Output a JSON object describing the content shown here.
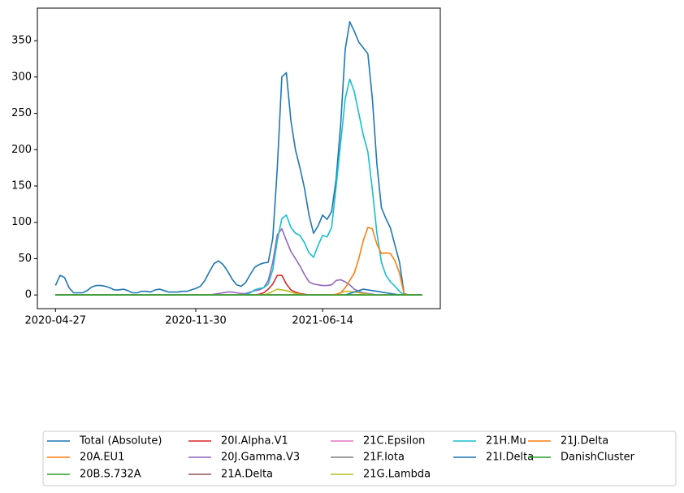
{
  "chart_data": {
    "type": "line",
    "x": [
      "2020-04-27",
      "2020-05-04",
      "2020-05-11",
      "2020-05-18",
      "2020-05-25",
      "2020-06-01",
      "2020-06-08",
      "2020-06-15",
      "2020-06-22",
      "2020-06-29",
      "2020-07-06",
      "2020-07-13",
      "2020-07-20",
      "2020-07-27",
      "2020-08-03",
      "2020-08-10",
      "2020-08-17",
      "2020-08-24",
      "2020-08-31",
      "2020-09-07",
      "2020-09-14",
      "2020-09-21",
      "2020-09-28",
      "2020-10-05",
      "2020-10-12",
      "2020-10-19",
      "2020-10-26",
      "2020-11-02",
      "2020-11-09",
      "2020-11-16",
      "2020-11-23",
      "2020-11-30",
      "2020-12-07",
      "2020-12-14",
      "2020-12-21",
      "2020-12-28",
      "2021-01-04",
      "2021-01-11",
      "2021-01-18",
      "2021-01-25",
      "2021-02-01",
      "2021-02-08",
      "2021-02-15",
      "2021-02-22",
      "2021-03-01",
      "2021-03-08",
      "2021-03-15",
      "2021-03-22",
      "2021-03-29",
      "2021-04-05",
      "2021-04-12",
      "2021-04-19",
      "2021-04-26",
      "2021-05-03",
      "2021-05-10",
      "2021-05-17",
      "2021-05-24",
      "2021-05-31",
      "2021-06-07",
      "2021-06-14",
      "2021-06-21",
      "2021-06-28",
      "2021-07-05",
      "2021-07-12",
      "2021-07-19",
      "2021-07-26",
      "2021-08-02",
      "2021-08-09",
      "2021-08-16",
      "2021-08-23",
      "2021-08-30",
      "2021-09-06",
      "2021-09-13",
      "2021-09-20",
      "2021-09-27",
      "2021-10-04",
      "2021-10-11",
      "2021-10-18",
      "2021-10-25",
      "2021-11-01",
      "2021-11-08",
      "2021-11-15"
    ],
    "xlim": [
      "2020-03-30",
      "2021-12-13"
    ],
    "xticks": [
      "2020-04-27",
      "2020-11-30",
      "2021-06-14"
    ],
    "ylim": [
      -18.8,
      394.8
    ],
    "yticks": [
      0,
      50,
      100,
      150,
      200,
      250,
      300,
      350
    ],
    "legend": "bottom",
    "series": [
      {
        "name": "Total (Absolute)",
        "color": "#1f77b4",
        "values": [
          13,
          27,
          24,
          10,
          3,
          3,
          3,
          6,
          11,
          13,
          13,
          12,
          10,
          7,
          7,
          8,
          6,
          3,
          3,
          5,
          5,
          4,
          7,
          8,
          6,
          4,
          4,
          4,
          5,
          5,
          7,
          9,
          12,
          20,
          32,
          43,
          47,
          42,
          33,
          22,
          14,
          12,
          17,
          28,
          38,
          42,
          44,
          45,
          78,
          175,
          300,
          306,
          240,
          200,
          175,
          147,
          110,
          85,
          95,
          110,
          104,
          115,
          160,
          235,
          338,
          376,
          363,
          348,
          340,
          332,
          270,
          180,
          120,
          105,
          92,
          68,
          45,
          2,
          0,
          0,
          0,
          0
        ]
      },
      {
        "name": "20A.EU1",
        "color": "#ff7f0e",
        "values": [
          0,
          0,
          0,
          0,
          0,
          0,
          0,
          0,
          0,
          0,
          0,
          0,
          0,
          0,
          0,
          0,
          0,
          0,
          0,
          0,
          0,
          0,
          0,
          0,
          0,
          0,
          0,
          0,
          0,
          0,
          0,
          0,
          0,
          0,
          0,
          0,
          0,
          0,
          0,
          0,
          0,
          0,
          0,
          0,
          0,
          0,
          0,
          0,
          0,
          0,
          0,
          0,
          0,
          0,
          0,
          0,
          0,
          0,
          0,
          0,
          0,
          0,
          0,
          0,
          0,
          0,
          0,
          0,
          0,
          0,
          0,
          0,
          0,
          0,
          0,
          0,
          0,
          0,
          0,
          0,
          0,
          0
        ]
      },
      {
        "name": "20B.S.732A",
        "color": "#2ca02c",
        "values": [
          0,
          0,
          0,
          0,
          0,
          0,
          0,
          0,
          0,
          0,
          0,
          0,
          0,
          0,
          0,
          0,
          0,
          0,
          0,
          0,
          0,
          0,
          0,
          0,
          0,
          0,
          0,
          0,
          0,
          0,
          0,
          0,
          0,
          0,
          0,
          0,
          0,
          0,
          0,
          0,
          0,
          0,
          0,
          0,
          0,
          0,
          0,
          0,
          0,
          0,
          0,
          0,
          0,
          0,
          0,
          0,
          0,
          0,
          0,
          0,
          0,
          0,
          0,
          0,
          0,
          0,
          0,
          0,
          0,
          0,
          0,
          0,
          0,
          0,
          0,
          0,
          0,
          0,
          0,
          0,
          0,
          0
        ]
      },
      {
        "name": "20I.Alpha.V1",
        "color": "#d62728",
        "values": [
          0,
          0,
          0,
          0,
          0,
          0,
          0,
          0,
          0,
          0,
          0,
          0,
          0,
          0,
          0,
          0,
          0,
          0,
          0,
          0,
          0,
          0,
          0,
          0,
          0,
          0,
          0,
          0,
          0,
          0,
          0,
          0,
          0,
          0,
          0,
          0,
          0,
          0,
          0,
          0,
          0,
          0,
          0,
          0,
          0,
          1,
          3,
          8,
          15,
          27,
          27,
          15,
          7,
          4,
          2,
          1,
          0,
          0,
          0,
          0,
          0,
          0,
          0,
          0,
          0,
          0,
          0,
          0,
          0,
          0,
          0,
          0,
          0,
          0,
          0,
          0,
          0,
          0,
          0,
          0,
          0,
          0
        ]
      },
      {
        "name": "20J.Gamma.V3",
        "color": "#9467bd",
        "values": [
          0,
          0,
          0,
          0,
          0,
          0,
          0,
          0,
          0,
          0,
          0,
          0,
          0,
          0,
          0,
          0,
          0,
          0,
          0,
          0,
          0,
          0,
          0,
          0,
          0,
          0,
          0,
          0,
          0,
          0,
          0,
          0,
          0,
          0,
          0,
          1,
          2,
          3,
          4,
          4,
          3,
          2,
          2,
          4,
          6,
          7,
          10,
          20,
          45,
          83,
          91,
          75,
          60,
          50,
          40,
          28,
          18,
          15,
          14,
          13,
          13,
          14,
          20,
          21,
          18,
          14,
          8,
          5,
          3,
          2,
          1,
          0,
          0,
          0,
          0,
          0,
          0,
          0,
          0,
          0,
          0,
          0
        ]
      },
      {
        "name": "21A.Delta",
        "color": "#8c564b",
        "values": [
          0,
          0,
          0,
          0,
          0,
          0,
          0,
          0,
          0,
          0,
          0,
          0,
          0,
          0,
          0,
          0,
          0,
          0,
          0,
          0,
          0,
          0,
          0,
          0,
          0,
          0,
          0,
          0,
          0,
          0,
          0,
          0,
          0,
          0,
          0,
          0,
          0,
          0,
          0,
          0,
          0,
          0,
          0,
          0,
          0,
          0,
          0,
          0,
          0,
          0,
          0,
          0,
          0,
          0,
          0,
          0,
          0,
          0,
          0,
          0,
          0,
          0,
          0,
          0,
          0,
          0,
          0,
          0,
          0,
          0,
          0,
          0,
          0,
          0,
          0,
          0,
          0,
          0,
          0,
          0,
          0,
          0
        ]
      },
      {
        "name": "21C.Epsilon",
        "color": "#e377c2",
        "values": [
          0,
          0,
          0,
          0,
          0,
          0,
          0,
          0,
          0,
          0,
          0,
          0,
          0,
          0,
          0,
          0,
          0,
          0,
          0,
          0,
          0,
          0,
          0,
          0,
          0,
          0,
          0,
          0,
          0,
          0,
          0,
          0,
          0,
          0,
          0,
          0,
          0,
          0,
          0,
          0,
          0,
          0,
          0,
          0,
          0,
          0,
          0,
          0,
          0,
          0,
          0,
          0,
          0,
          0,
          0,
          0,
          0,
          0,
          0,
          0,
          0,
          0,
          0,
          0,
          0,
          0,
          0,
          0,
          0,
          0,
          0,
          0,
          0,
          0,
          0,
          0,
          0,
          0,
          0,
          0,
          0,
          0
        ]
      },
      {
        "name": "21F.Iota",
        "color": "#7f7f7f",
        "values": [
          0,
          0,
          0,
          0,
          0,
          0,
          0,
          0,
          0,
          0,
          0,
          0,
          0,
          0,
          0,
          0,
          0,
          0,
          0,
          0,
          0,
          0,
          0,
          0,
          0,
          0,
          0,
          0,
          0,
          0,
          0,
          0,
          0,
          0,
          0,
          0,
          0,
          0,
          0,
          0,
          0,
          0,
          0,
          0,
          0,
          0,
          0,
          0,
          0,
          0,
          0,
          0,
          0,
          0,
          0,
          0,
          0,
          0,
          0,
          0,
          0,
          0,
          0,
          0,
          0,
          0,
          0,
          0,
          0,
          0,
          0,
          0,
          0,
          0,
          0,
          0,
          0,
          0,
          0,
          0,
          0,
          0
        ]
      },
      {
        "name": "21G.Lambda",
        "color": "#bcbd22",
        "values": [
          0,
          0,
          0,
          0,
          0,
          0,
          0,
          0,
          0,
          0,
          0,
          0,
          0,
          0,
          0,
          0,
          0,
          0,
          0,
          0,
          0,
          0,
          0,
          0,
          0,
          0,
          0,
          0,
          0,
          0,
          0,
          0,
          0,
          0,
          0,
          0,
          0,
          0,
          0,
          0,
          0,
          0,
          0,
          0,
          0,
          0,
          0,
          2,
          5,
          8,
          7,
          6,
          4,
          2,
          1,
          0,
          0,
          0,
          0,
          0,
          0,
          0,
          0,
          3,
          5,
          5,
          4,
          3,
          2,
          1,
          0,
          0,
          0,
          0,
          0,
          0,
          0,
          0,
          0,
          0,
          0,
          0
        ]
      },
      {
        "name": "21H.Mu",
        "color": "#17becf",
        "values": [
          0,
          0,
          0,
          0,
          0,
          0,
          0,
          0,
          0,
          0,
          0,
          0,
          0,
          0,
          0,
          0,
          0,
          0,
          0,
          0,
          0,
          0,
          0,
          0,
          0,
          0,
          0,
          0,
          0,
          0,
          0,
          0,
          0,
          0,
          0,
          0,
          0,
          0,
          0,
          0,
          0,
          0,
          0,
          3,
          7,
          9,
          10,
          15,
          35,
          75,
          105,
          110,
          93,
          85,
          82,
          72,
          58,
          52,
          68,
          82,
          80,
          93,
          150,
          210,
          270,
          297,
          280,
          250,
          220,
          197,
          145,
          85,
          45,
          27,
          18,
          12,
          5,
          0,
          0,
          0,
          0,
          0
        ]
      },
      {
        "name": "21I.Delta",
        "color": "#1f77b4",
        "values": [
          0,
          0,
          0,
          0,
          0,
          0,
          0,
          0,
          0,
          0,
          0,
          0,
          0,
          0,
          0,
          0,
          0,
          0,
          0,
          0,
          0,
          0,
          0,
          0,
          0,
          0,
          0,
          0,
          0,
          0,
          0,
          0,
          0,
          0,
          0,
          0,
          0,
          0,
          0,
          0,
          0,
          0,
          0,
          0,
          0,
          0,
          0,
          0,
          0,
          0,
          0,
          0,
          0,
          0,
          0,
          0,
          0,
          0,
          0,
          0,
          0,
          0,
          0,
          0,
          0,
          2,
          4,
          6,
          8,
          7,
          6,
          5,
          4,
          3,
          2,
          1,
          0,
          0,
          0,
          0,
          0,
          0
        ]
      },
      {
        "name": "21J.Delta",
        "color": "#ff7f0e",
        "values": [
          0,
          0,
          0,
          0,
          0,
          0,
          0,
          0,
          0,
          0,
          0,
          0,
          0,
          0,
          0,
          0,
          0,
          0,
          0,
          0,
          0,
          0,
          0,
          0,
          0,
          0,
          0,
          0,
          0,
          0,
          0,
          0,
          0,
          0,
          0,
          0,
          0,
          0,
          0,
          0,
          0,
          0,
          0,
          0,
          0,
          0,
          0,
          0,
          0,
          0,
          0,
          0,
          0,
          0,
          0,
          0,
          0,
          0,
          0,
          0,
          0,
          0,
          1,
          3,
          10,
          20,
          30,
          50,
          75,
          93,
          91,
          70,
          57,
          58,
          57,
          47,
          30,
          1,
          0,
          0,
          0,
          0
        ]
      },
      {
        "name": "DanishCluster",
        "color": "#2ca02c",
        "values": [
          0,
          0,
          0,
          0,
          0,
          0,
          0,
          0,
          0,
          0,
          0,
          0,
          0,
          0,
          0,
          0,
          0,
          0,
          0,
          0,
          0,
          0,
          0,
          0,
          0,
          0,
          0,
          0,
          0,
          0,
          0,
          0,
          0,
          0,
          0,
          0,
          0,
          0,
          0,
          0,
          0,
          0,
          0,
          0,
          0,
          0,
          0,
          0,
          0,
          0,
          0,
          0,
          0,
          0,
          0,
          0,
          0,
          0,
          0,
          0,
          0,
          0,
          0,
          0,
          0,
          0,
          0,
          0,
          0,
          0,
          0,
          0,
          0,
          0,
          0,
          0,
          0,
          0,
          0,
          0,
          0,
          0
        ]
      }
    ]
  }
}
